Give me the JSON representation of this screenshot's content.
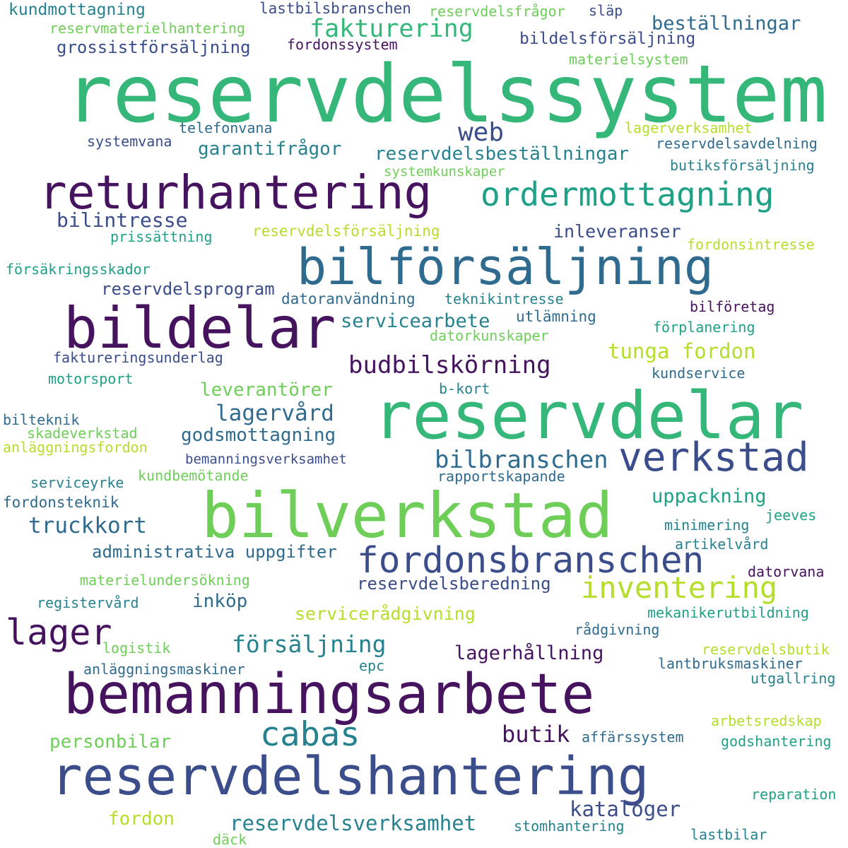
{
  "palette": {
    "dark_purple": "#46135f",
    "indigo": "#3b4d8a",
    "blue": "#2f6b8e",
    "teal": "#26828e",
    "green_teal": "#1fa187",
    "green": "#35b779",
    "light_green": "#6ece58",
    "yellow_green": "#b5de2b"
  },
  "words": [
    {
      "id": "reservdelssystem",
      "text": "reservdelssystem",
      "color": "#35b779"
    },
    {
      "id": "reservdelar",
      "text": "reservdelar",
      "color": "#35b779"
    },
    {
      "id": "bemanningsarbete",
      "text": "bemanningsarbete",
      "color": "#46135f"
    },
    {
      "id": "reservdelshantering",
      "text": "reservdelshantering",
      "color": "#3b4d8a"
    },
    {
      "id": "bilverkstad",
      "text": "bilverkstad",
      "color": "#6ece58"
    },
    {
      "id": "bilforsaljning",
      "text": "bilförsäljning",
      "color": "#2f6b8e"
    },
    {
      "id": "bildelar",
      "text": "bildelar",
      "color": "#46135f"
    },
    {
      "id": "returhantering",
      "text": "returhantering",
      "color": "#46135f"
    },
    {
      "id": "ordermottagning",
      "text": "ordermottagning",
      "color": "#1fa187"
    },
    {
      "id": "verkstad",
      "text": "verkstad",
      "color": "#3b4d8a"
    },
    {
      "id": "fordonsbranschen",
      "text": "fordonsbranschen",
      "color": "#3b4d8a"
    },
    {
      "id": "lager",
      "text": "lager",
      "color": "#46135f"
    },
    {
      "id": "inventering",
      "text": "inventering",
      "color": "#b5de2b"
    },
    {
      "id": "cabas",
      "text": "cabas",
      "color": "#26828e"
    },
    {
      "id": "budbilskorning",
      "text": "budbilskörning",
      "color": "#46135f"
    },
    {
      "id": "bilbranschen",
      "text": "bilbranschen",
      "color": "#2f6b8e"
    },
    {
      "id": "fakturering",
      "text": "fakturering",
      "color": "#35b779"
    },
    {
      "id": "web",
      "text": "web",
      "color": "#3b4d8a"
    },
    {
      "id": "forsaljning",
      "text": "försäljning",
      "color": "#26828e"
    },
    {
      "id": "truckkort",
      "text": "truckkort",
      "color": "#2f6b8e"
    },
    {
      "id": "lagervard",
      "text": "lagervård",
      "color": "#2f6b8e"
    },
    {
      "id": "tunga-fordon",
      "text": "tunga fordon",
      "color": "#b5de2b"
    },
    {
      "id": "kataloger",
      "text": "kataloger",
      "color": "#3b4d8a"
    },
    {
      "id": "reservdelsverksamhet",
      "text": "reservdelsverksamhet",
      "color": "#26828e"
    },
    {
      "id": "butik",
      "text": "butik",
      "color": "#46135f"
    },
    {
      "id": "bestallningar",
      "text": "beställningar",
      "color": "#2f6b8e"
    },
    {
      "id": "reservdelsbestallningar",
      "text": "reservdelsbeställningar",
      "color": "#26828e"
    },
    {
      "id": "lagerhallning",
      "text": "lagerhållning",
      "color": "#46135f"
    },
    {
      "id": "godsmottagning",
      "text": "godsmottagning",
      "color": "#2f6b8e"
    },
    {
      "id": "garantifragor",
      "text": "garantifrågor",
      "color": "#26828e"
    },
    {
      "id": "bilintresse",
      "text": "bilintresse",
      "color": "#3b4d8a"
    },
    {
      "id": "leverantorer",
      "text": "leverantörer",
      "color": "#6ece58"
    },
    {
      "id": "servicearbete",
      "text": "servicearbete",
      "color": "#26828e"
    },
    {
      "id": "administrativa-uppgifter",
      "text": "administrativa uppgifter",
      "color": "#2f6b8e"
    },
    {
      "id": "personbilar",
      "text": "personbilar",
      "color": "#6ece58"
    },
    {
      "id": "inkop",
      "text": "inköp",
      "color": "#2f6b8e"
    },
    {
      "id": "fordon",
      "text": "fordon",
      "color": "#b5de2b"
    },
    {
      "id": "uppackning",
      "text": "uppackning",
      "color": "#1fa187"
    },
    {
      "id": "serviceradgivning",
      "text": "servicerådgivning",
      "color": "#b5de2b"
    },
    {
      "id": "inleveranser",
      "text": "inleveranser",
      "color": "#3b4d8a"
    },
    {
      "id": "reservdelsprogram",
      "text": "reservdelsprogram",
      "color": "#3b4d8a"
    },
    {
      "id": "reservdelsberedning",
      "text": "reservdelsberedning",
      "color": "#3b4d8a"
    },
    {
      "id": "grossistforsaljning",
      "text": "grossistförsäljning",
      "color": "#3b4d8a"
    },
    {
      "id": "kundmottagning",
      "text": "kundmottagning",
      "color": "#26828e"
    },
    {
      "id": "lastbilsbranschen",
      "text": "lastbilsbranschen",
      "color": "#3b4d8a"
    },
    {
      "id": "reservdelsfragor",
      "text": "reservdelsfrågor",
      "color": "#6ece58"
    },
    {
      "id": "slap",
      "text": "släp",
      "color": "#3b4d8a"
    },
    {
      "id": "reservmaterielhantering",
      "text": "reservmaterielhantering",
      "color": "#6ece58"
    },
    {
      "id": "fordonssystem",
      "text": "fordonssystem",
      "color": "#46135f"
    },
    {
      "id": "bildelsforsaljning",
      "text": "bildelsförsäljning",
      "color": "#3b4d8a"
    },
    {
      "id": "materielsystem",
      "text": "materielsystem",
      "color": "#6ece58"
    },
    {
      "id": "telefonvana",
      "text": "telefonvana",
      "color": "#2f6b8e"
    },
    {
      "id": "lagerverksamhet",
      "text": "lagerverksamhet",
      "color": "#b5de2b"
    },
    {
      "id": "systemvana",
      "text": "systemvana",
      "color": "#3b4d8a"
    },
    {
      "id": "reservdelsavdelning",
      "text": "reservdelsavdelning",
      "color": "#2f6b8e"
    },
    {
      "id": "systemkunskaper",
      "text": "systemkunskaper",
      "color": "#6ece58"
    },
    {
      "id": "butiksforsaljning",
      "text": "butiksförsäljning",
      "color": "#26828e"
    },
    {
      "id": "prissattning",
      "text": "prissättning",
      "color": "#1fa187"
    },
    {
      "id": "reservdelsforsaljning",
      "text": "reservdelsförsäljning",
      "color": "#b5de2b"
    },
    {
      "id": "fordonsintresse",
      "text": "fordonsintresse",
      "color": "#b5de2b"
    },
    {
      "id": "forsakringsskador",
      "text": "försäkringsskador",
      "color": "#1fa187"
    },
    {
      "id": "datoranvandning",
      "text": "datoranvändning",
      "color": "#2f6b8e"
    },
    {
      "id": "teknikintresse",
      "text": "teknikintresse",
      "color": "#26828e"
    },
    {
      "id": "bilforetag",
      "text": "bilföretag",
      "color": "#46135f"
    },
    {
      "id": "utlamning",
      "text": "utlämning",
      "color": "#2f6b8e"
    },
    {
      "id": "datorkunskaper",
      "text": "datorkunskaper",
      "color": "#6ece58"
    },
    {
      "id": "forplanering",
      "text": "förplanering",
      "color": "#1fa187"
    },
    {
      "id": "faktureringsunderlag",
      "text": "faktureringsunderlag",
      "color": "#3b4d8a"
    },
    {
      "id": "motorsport",
      "text": "motorsport",
      "color": "#1fa187"
    },
    {
      "id": "kundservice",
      "text": "kundservice",
      "color": "#2f6b8e"
    },
    {
      "id": "b-kort",
      "text": "b-kort",
      "color": "#26828e"
    },
    {
      "id": "bilteknik",
      "text": "bilteknik",
      "color": "#2f6b8e"
    },
    {
      "id": "skadeverkstad",
      "text": "skadeverkstad",
      "color": "#6ece58"
    },
    {
      "id": "anlaggningsfordon",
      "text": "anläggningsfordon",
      "color": "#b5de2b"
    },
    {
      "id": "bemanningsverksamhet",
      "text": "bemanningsverksamhet",
      "color": "#3b4d8a"
    },
    {
      "id": "serviceyrke",
      "text": "serviceyrke",
      "color": "#26828e"
    },
    {
      "id": "kundbemotande",
      "text": "kundbemötande",
      "color": "#6ece58"
    },
    {
      "id": "rapportskapande",
      "text": "rapportskapande",
      "color": "#2f6b8e"
    },
    {
      "id": "fordonsteknik",
      "text": "fordonsteknik",
      "color": "#2f6b8e"
    },
    {
      "id": "minimering",
      "text": "minimering",
      "color": "#26828e"
    },
    {
      "id": "jeeves",
      "text": "jeeves",
      "color": "#1fa187"
    },
    {
      "id": "artikelvard",
      "text": "artikelvård",
      "color": "#26828e"
    },
    {
      "id": "datorvana",
      "text": "datorvana",
      "color": "#46135f"
    },
    {
      "id": "materielundersokning",
      "text": "materielundersökning",
      "color": "#6ece58"
    },
    {
      "id": "registervard",
      "text": "registervård",
      "color": "#26828e"
    },
    {
      "id": "mekanikerutbildning",
      "text": "mekanikerutbildning",
      "color": "#1fa187"
    },
    {
      "id": "radgivning",
      "text": "rådgivning",
      "color": "#2f6b8e"
    },
    {
      "id": "logistik",
      "text": "logistik",
      "color": "#6ece58"
    },
    {
      "id": "reservdelsbutik",
      "text": "reservdelsbutik",
      "color": "#b5de2b"
    },
    {
      "id": "anlaggningsmaskiner",
      "text": "anläggningsmaskiner",
      "color": "#2f6b8e"
    },
    {
      "id": "epc",
      "text": "epc",
      "color": "#26828e"
    },
    {
      "id": "lantbruksmaskiner",
      "text": "lantbruksmaskiner",
      "color": "#2f6b8e"
    },
    {
      "id": "utgallring",
      "text": "utgallring",
      "color": "#26828e"
    },
    {
      "id": "arbetsredskap",
      "text": "arbetsredskap",
      "color": "#b5de2b"
    },
    {
      "id": "affarssystem",
      "text": "affärssystem",
      "color": "#2f6b8e"
    },
    {
      "id": "godshantering",
      "text": "godshantering",
      "color": "#1fa187"
    },
    {
      "id": "reparation",
      "text": "reparation",
      "color": "#1fa187"
    },
    {
      "id": "stomhantering",
      "text": "stomhantering",
      "color": "#26828e"
    },
    {
      "id": "lastbilar",
      "text": "lastbilar",
      "color": "#26828e"
    },
    {
      "id": "dack",
      "text": "däck",
      "color": "#6ece58"
    }
  ]
}
